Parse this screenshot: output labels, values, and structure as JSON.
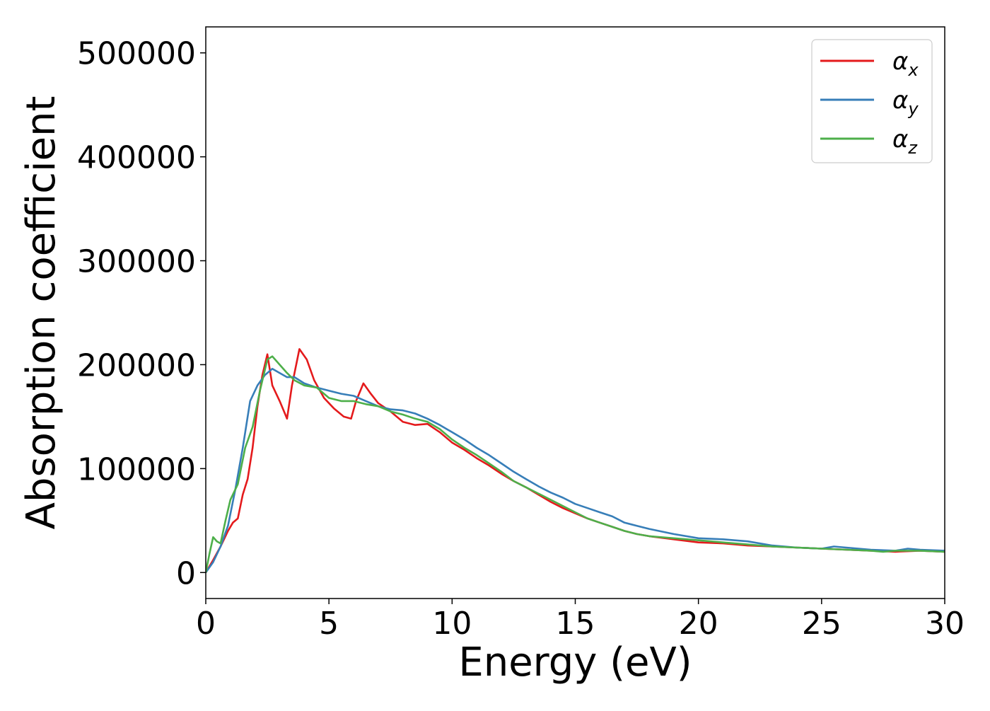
{
  "chart_data": {
    "type": "line",
    "xlabel": "Energy (eV)",
    "ylabel": "Absorption coefficient",
    "xlim": [
      0,
      30
    ],
    "ylim": [
      -25000,
      525000
    ],
    "xticks": [
      0,
      5,
      10,
      15,
      20,
      25,
      30
    ],
    "xtick_labels": [
      "0",
      "5",
      "10",
      "15",
      "20",
      "25",
      "30"
    ],
    "yticks": [
      0,
      100000,
      200000,
      300000,
      400000,
      500000
    ],
    "ytick_labels": [
      "0",
      "100000",
      "200000",
      "300000",
      "400000",
      "500000"
    ],
    "grid": false,
    "legend_position": "top-right",
    "series": [
      {
        "name": "α_x",
        "label_main": "α",
        "label_sub": "x",
        "color": "#e41a1c",
        "x": [
          0,
          0.3,
          0.6,
          0.9,
          1.1,
          1.3,
          1.5,
          1.7,
          1.9,
          2.1,
          2.3,
          2.5,
          2.7,
          3.0,
          3.3,
          3.5,
          3.8,
          4.1,
          4.4,
          4.8,
          5.2,
          5.6,
          5.9,
          6.1,
          6.4,
          6.7,
          7.0,
          7.5,
          8.0,
          8.5,
          9.0,
          9.5,
          10.0,
          10.5,
          11.0,
          11.5,
          12.0,
          12.5,
          13.0,
          13.5,
          14.0,
          14.5,
          15.0,
          15.5,
          16.0,
          16.5,
          17.0,
          17.5,
          18.0,
          19.0,
          20.0,
          21.0,
          22.0,
          23.0,
          24.0,
          25.0,
          26.0,
          27.0,
          28.0,
          29.0,
          30.0
        ],
        "y": [
          0,
          12000,
          25000,
          40000,
          48000,
          52000,
          75000,
          90000,
          120000,
          160000,
          190000,
          210000,
          180000,
          165000,
          148000,
          180000,
          215000,
          205000,
          185000,
          168000,
          158000,
          150000,
          148000,
          165000,
          182000,
          172000,
          163000,
          155000,
          145000,
          142000,
          143000,
          135000,
          125000,
          118000,
          110000,
          103000,
          95000,
          88000,
          82000,
          75000,
          68000,
          62000,
          57000,
          52000,
          48000,
          44000,
          40000,
          37000,
          35000,
          32000,
          29000,
          28000,
          26000,
          25000,
          24000,
          23000,
          22000,
          21000,
          20000,
          21000,
          20000
        ]
      },
      {
        "name": "α_y",
        "label_main": "α",
        "label_sub": "y",
        "color": "#377eb8",
        "x": [
          0,
          0.3,
          0.6,
          0.9,
          1.2,
          1.5,
          1.8,
          2.1,
          2.4,
          2.7,
          3.0,
          3.3,
          3.6,
          4.0,
          4.5,
          5.0,
          5.5,
          6.0,
          6.5,
          7.0,
          7.5,
          8.0,
          8.5,
          9.0,
          9.5,
          10.0,
          10.5,
          11.0,
          11.5,
          12.0,
          12.5,
          13.0,
          13.5,
          14.0,
          14.5,
          15.0,
          15.5,
          16.0,
          16.5,
          17.0,
          17.5,
          18.0,
          19.0,
          20.0,
          21.0,
          22.0,
          23.0,
          24.0,
          25.0,
          25.5,
          26.0,
          27.0,
          28.0,
          28.5,
          29.0,
          30.0
        ],
        "y": [
          0,
          10000,
          25000,
          45000,
          80000,
          120000,
          165000,
          180000,
          190000,
          196000,
          192000,
          188000,
          188000,
          182000,
          178000,
          175000,
          172000,
          170000,
          165000,
          160000,
          157000,
          156000,
          153000,
          148000,
          142000,
          135000,
          128000,
          120000,
          113000,
          105000,
          97000,
          90000,
          83000,
          77000,
          72000,
          66000,
          62000,
          58000,
          54000,
          48000,
          45000,
          42000,
          37000,
          33000,
          32000,
          30000,
          26000,
          24000,
          23000,
          25000,
          24000,
          22000,
          21000,
          23000,
          22000,
          21000
        ]
      },
      {
        "name": "α_z",
        "label_main": "α",
        "label_sub": "z",
        "color": "#4daf4a",
        "x": [
          0,
          0.15,
          0.3,
          0.45,
          0.6,
          0.8,
          1.0,
          1.3,
          1.6,
          1.9,
          2.2,
          2.5,
          2.7,
          3.0,
          3.3,
          3.6,
          4.0,
          4.5,
          5.0,
          5.5,
          6.0,
          6.5,
          7.0,
          7.5,
          8.0,
          8.5,
          9.0,
          9.5,
          10.0,
          10.5,
          11.0,
          11.5,
          12.0,
          12.5,
          13.0,
          13.5,
          14.0,
          14.5,
          15.0,
          15.5,
          16.0,
          16.5,
          17.0,
          17.5,
          18.0,
          19.0,
          20.0,
          21.0,
          22.0,
          23.0,
          24.0,
          25.0,
          26.0,
          27.0,
          27.5,
          28.0,
          29.0,
          30.0
        ],
        "y": [
          0,
          18000,
          34000,
          30000,
          28000,
          50000,
          70000,
          85000,
          120000,
          140000,
          175000,
          205000,
          208000,
          200000,
          192000,
          185000,
          180000,
          178000,
          168000,
          165000,
          165000,
          162000,
          160000,
          155000,
          152000,
          148000,
          145000,
          138000,
          128000,
          120000,
          113000,
          105000,
          97000,
          88000,
          82000,
          76000,
          70000,
          64000,
          58000,
          52000,
          48000,
          44000,
          40000,
          37000,
          35000,
          33000,
          31000,
          29000,
          27000,
          25000,
          24000,
          23000,
          22000,
          21000,
          20000,
          21000,
          21000,
          20000
        ]
      }
    ]
  }
}
